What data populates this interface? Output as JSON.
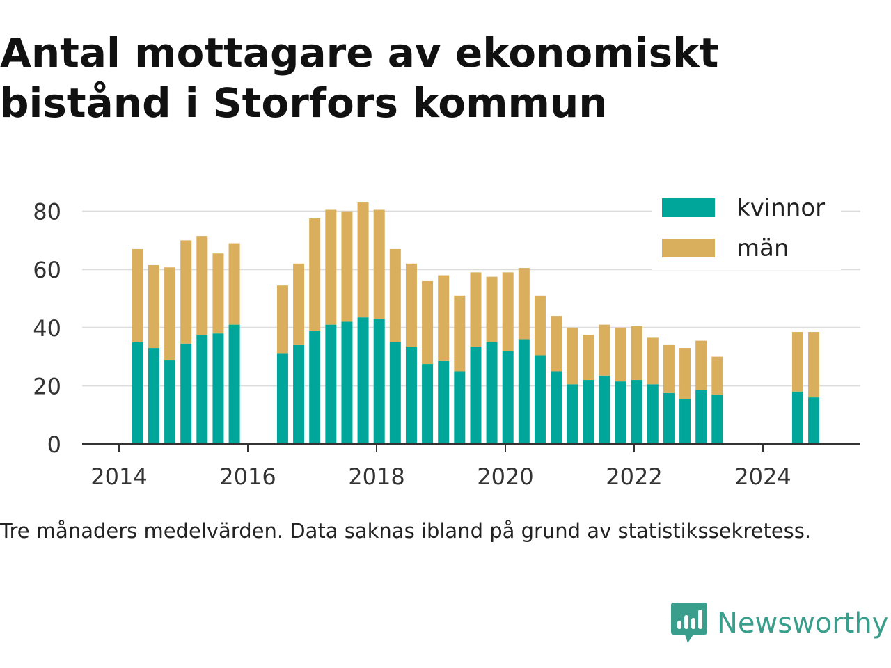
{
  "title": "Antal mottagare av ekonomiskt bistånd i Storfors kommun",
  "caption": "Tre månaders medelvärden. Data saknas ibland på grund av statistikssekretess.",
  "brand": {
    "name": "Newsworthy",
    "color": "#3a9e8c",
    "icon": "newsworthy-logo-icon"
  },
  "chart_data": {
    "type": "bar",
    "stacked": true,
    "grid": true,
    "legend_position": "top-right",
    "xlabel": "",
    "ylabel": "",
    "ylim": [
      0,
      90
    ],
    "yticks": [
      0,
      20,
      40,
      60,
      80
    ],
    "xticks": [
      {
        "label": "2014",
        "value": 2014.0
      },
      {
        "label": "2016",
        "value": 2016.0
      },
      {
        "label": "2018",
        "value": 2018.0
      },
      {
        "label": "2020",
        "value": 2020.0
      },
      {
        "label": "2022",
        "value": 2022.0
      },
      {
        "label": "2024",
        "value": 2024.0
      }
    ],
    "x": [
      2014.29,
      2014.54,
      2014.79,
      2015.04,
      2015.29,
      2015.54,
      2015.79,
      2016.54,
      2016.79,
      2017.04,
      2017.29,
      2017.54,
      2017.79,
      2018.04,
      2018.29,
      2018.54,
      2018.79,
      2019.04,
      2019.29,
      2019.54,
      2019.79,
      2020.04,
      2020.29,
      2020.54,
      2020.79,
      2021.04,
      2021.29,
      2021.54,
      2021.79,
      2022.04,
      2022.29,
      2022.54,
      2022.79,
      2023.04,
      2023.29,
      2024.54,
      2024.79
    ],
    "series": [
      {
        "name": "kvinnor",
        "color": "#00a69a",
        "values": [
          35,
          33,
          28.7,
          34.5,
          37.5,
          38,
          41,
          31,
          34,
          39,
          41,
          42,
          43.5,
          43,
          35,
          33.5,
          27.5,
          28.5,
          25,
          33.5,
          35,
          32,
          36,
          30.5,
          25,
          20.5,
          22,
          23.5,
          21.5,
          22,
          20.5,
          17.5,
          15.5,
          18.5,
          17,
          18,
          16
        ]
      },
      {
        "name": "män",
        "color": "#d9ae5c",
        "values": [
          32,
          28.5,
          32,
          35.5,
          34,
          27.5,
          28,
          23.5,
          28,
          38.5,
          39.5,
          38,
          39.5,
          37.5,
          32,
          28.5,
          28.5,
          29.5,
          26,
          25.5,
          22.5,
          27,
          24.5,
          20.5,
          19,
          19.5,
          15.5,
          17.5,
          18.5,
          18.5,
          16,
          16.5,
          17.5,
          17,
          13,
          20.5,
          22.5
        ]
      }
    ]
  }
}
